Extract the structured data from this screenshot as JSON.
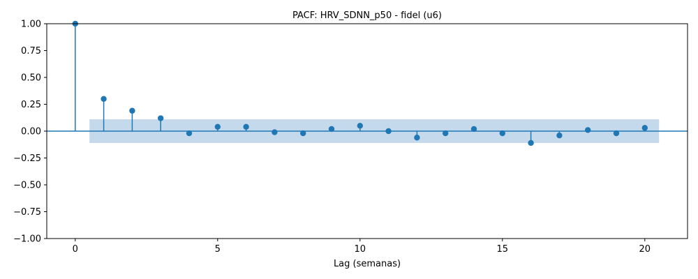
{
  "chart_data": {
    "type": "scatter",
    "title": "PACF: HRV_SDNN_p50 - fidel (u6)",
    "xlabel": "Lag (semanas)",
    "ylabel": "",
    "xlim": [
      -1,
      21.5
    ],
    "ylim": [
      -1.0,
      1.0
    ],
    "x_ticks": [
      0,
      5,
      10,
      15,
      20
    ],
    "x_tick_labels": [
      "0",
      "5",
      "10",
      "15",
      "20"
    ],
    "y_ticks": [
      1.0,
      0.75,
      0.5,
      0.25,
      0.0,
      -0.25,
      -0.5,
      -0.75,
      -1.0
    ],
    "y_tick_labels": [
      "1.00",
      "0.75",
      "0.50",
      "0.25",
      "0.00",
      "−0.25",
      "−0.50",
      "−0.75",
      "−1.00"
    ],
    "grid": false,
    "confidence_band": {
      "x_start": 0.5,
      "x_end": 20.5,
      "lower": -0.11,
      "upper": 0.11,
      "color": "#c5d9ec"
    },
    "stem_color": "#1f77b4",
    "series": [
      {
        "x": [
          0,
          1,
          2,
          3,
          4,
          5,
          6,
          7,
          8,
          9,
          10,
          11,
          12,
          13,
          14,
          15,
          16,
          17,
          18,
          19,
          20
        ],
        "values": [
          1.0,
          0.3,
          0.19,
          0.12,
          -0.02,
          0.04,
          0.04,
          -0.01,
          -0.02,
          0.02,
          0.05,
          0.0,
          -0.06,
          -0.02,
          0.02,
          -0.02,
          -0.11,
          -0.04,
          0.01,
          -0.02,
          0.03
        ]
      }
    ]
  }
}
